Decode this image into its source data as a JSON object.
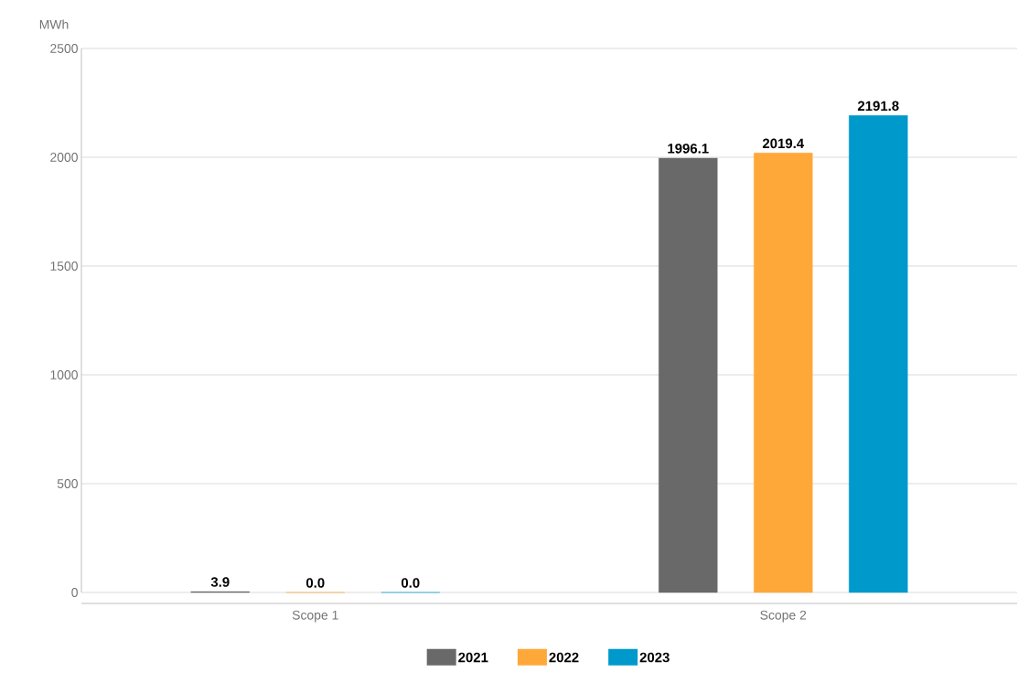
{
  "chart_data": {
    "type": "bar",
    "ylabel": "MWh",
    "categories": [
      "Scope 1",
      "Scope 2"
    ],
    "series": [
      {
        "name": "2021",
        "color": "#696969",
        "values": [
          3.9,
          1996.1
        ],
        "value_labels": [
          "3.9",
          "1996.1"
        ]
      },
      {
        "name": "2022",
        "color": "#ffa83a",
        "values": [
          0,
          2019.4
        ],
        "value_labels": [
          "0.0",
          "2019.4"
        ]
      },
      {
        "name": "2023",
        "color": "#0099cc",
        "values": [
          0,
          2191.8
        ],
        "value_labels": [
          "0.0",
          "2191.8"
        ]
      }
    ],
    "ylim": [
      0,
      2500
    ],
    "yticks": [
      0,
      500,
      1000,
      1500,
      2000,
      2500
    ],
    "grid": "y",
    "legend": "bottom"
  }
}
